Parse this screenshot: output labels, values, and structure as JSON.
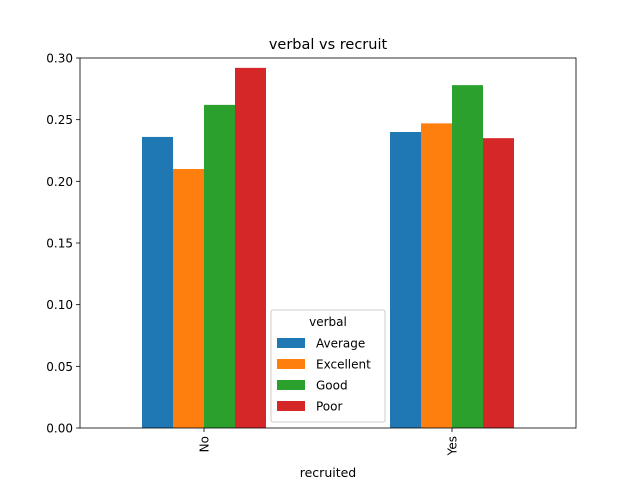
{
  "chart_data": {
    "type": "bar",
    "title": "verbal vs recruit",
    "xlabel": "recruited",
    "ylabel": "",
    "categories": [
      "No",
      "Yes"
    ],
    "series": [
      {
        "name": "Average",
        "values": [
          0.236,
          0.24
        ],
        "color": "#1f77b4"
      },
      {
        "name": "Excellent",
        "values": [
          0.21,
          0.247
        ],
        "color": "#ff7f0e"
      },
      {
        "name": "Good",
        "values": [
          0.262,
          0.278
        ],
        "color": "#2ca02c"
      },
      {
        "name": "Poor",
        "values": [
          0.292,
          0.235
        ],
        "color": "#d62728"
      }
    ],
    "ylim": [
      0,
      0.3
    ],
    "yticks": [
      "0.00",
      "0.05",
      "0.10",
      "0.15",
      "0.20",
      "0.25",
      "0.30"
    ],
    "legend": {
      "title": "verbal",
      "placement": "lower center"
    },
    "grid": false
  }
}
